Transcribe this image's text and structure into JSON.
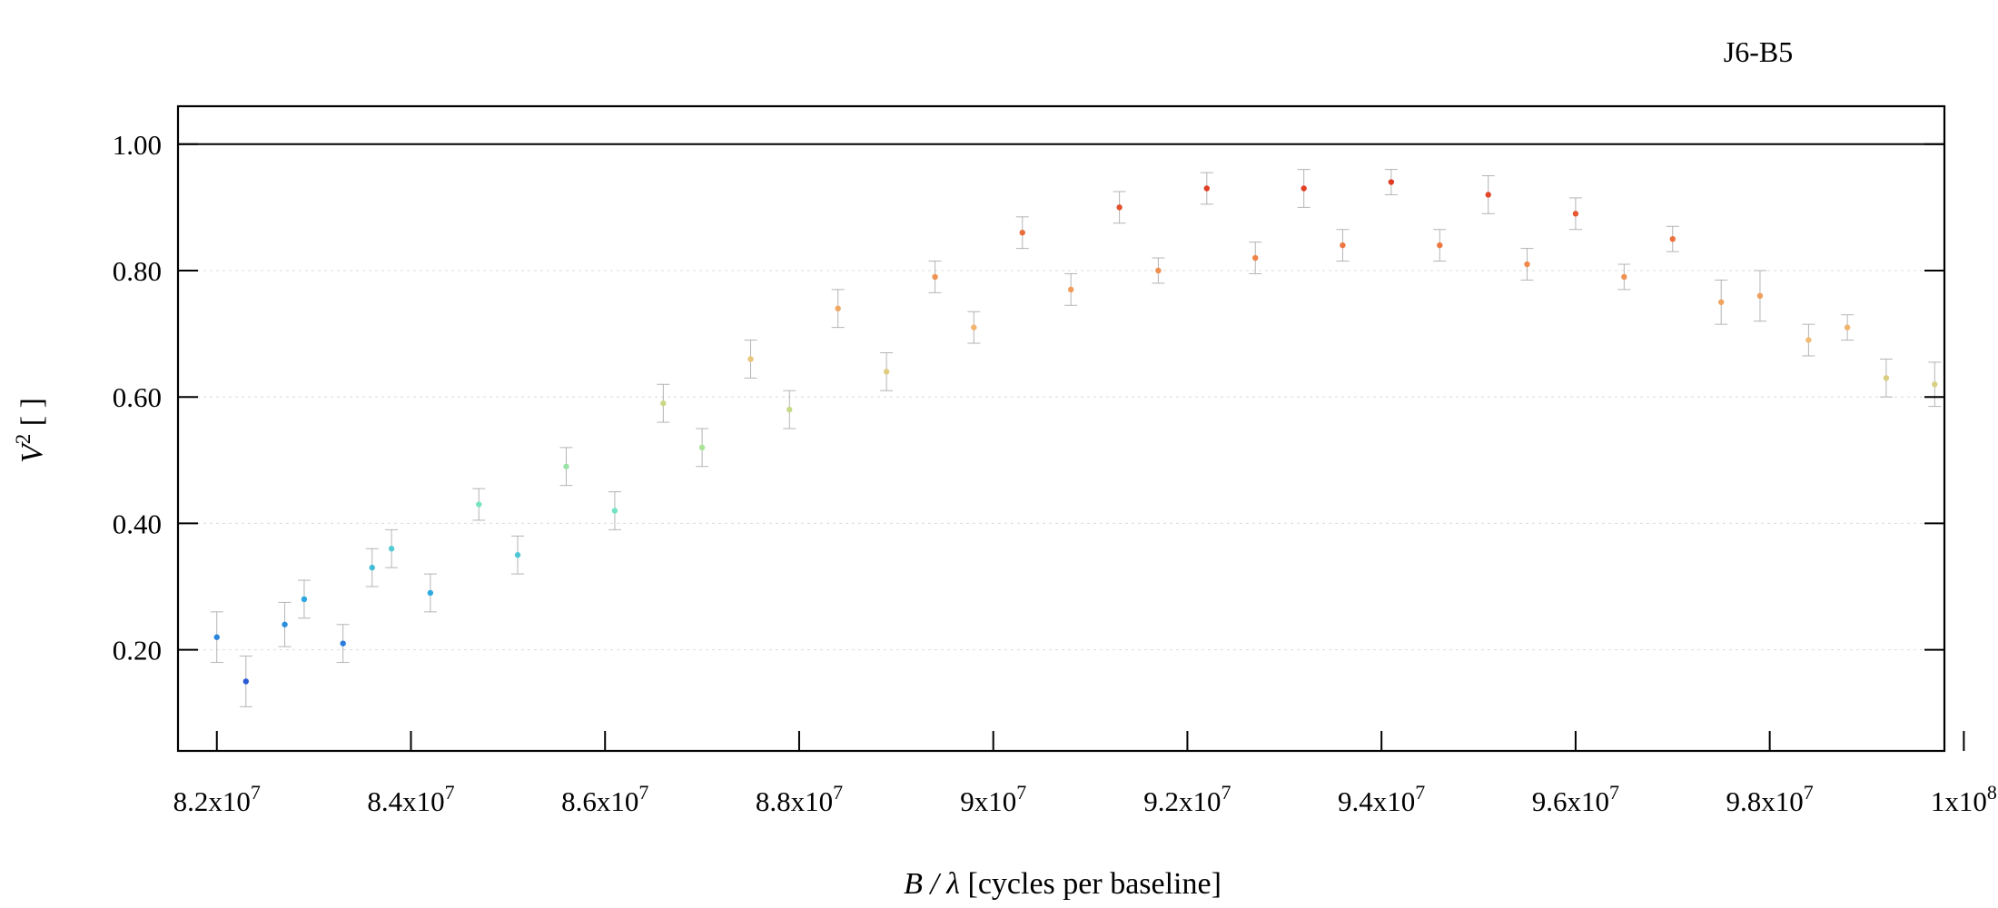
{
  "chart_data": {
    "type": "scatter",
    "subtitle": "J6-B5",
    "xlabel_italic": "B / λ",
    "xlabel_rest": " [cycles per baseline]",
    "ylabel_italic": "V",
    "ylabel_sup": "2",
    "ylabel_rest": " [ ]",
    "xlim": [
      81600000,
      99800000
    ],
    "ylim": [
      0.04,
      1.06
    ],
    "reference_line_y": 1.0,
    "x_ticks": [
      82000000,
      84000000,
      86000000,
      88000000,
      90000000,
      92000000,
      94000000,
      96000000,
      98000000,
      100000000
    ],
    "x_tick_labels": [
      {
        "base": "8.2x10",
        "exp": "7"
      },
      {
        "base": "8.4x10",
        "exp": "7"
      },
      {
        "base": "8.6x10",
        "exp": "7"
      },
      {
        "base": "8.8x10",
        "exp": "7"
      },
      {
        "base": "9x10",
        "exp": "7"
      },
      {
        "base": "9.2x10",
        "exp": "7"
      },
      {
        "base": "9.4x10",
        "exp": "7"
      },
      {
        "base": "9.6x10",
        "exp": "7"
      },
      {
        "base": "9.8x10",
        "exp": "7"
      },
      {
        "base": "1x10",
        "exp": "8"
      }
    ],
    "y_ticks": [
      0.2,
      0.4,
      0.6,
      0.8,
      1.0
    ],
    "y_tick_labels": [
      "0.20",
      "0.40",
      "0.60",
      "0.80",
      "1.00"
    ],
    "grid": "horizontal dotted",
    "error_bar_color": "#a8a8a8",
    "colormap": [
      "#2b5cd6",
      "#2aa7e0",
      "#6fe3c8",
      "#b5e38c",
      "#f2c27a",
      "#f08a4b",
      "#e03a22"
    ],
    "series": [
      {
        "x": [
          82000000,
          82300000,
          82700000,
          82900000,
          83300000,
          83600000,
          83800000,
          84200000,
          84700000,
          85100000,
          85600000,
          86100000,
          86600000,
          87000000,
          87500000,
          87900000,
          88400000,
          88900000,
          89400000,
          89800000,
          90300000,
          90800000,
          91300000,
          91700000,
          92200000,
          92700000,
          93200000,
          93600000,
          94100000,
          94600000,
          95100000,
          95500000,
          96000000,
          96500000,
          97000000,
          97500000,
          97900000,
          98400000,
          98800000,
          99200000,
          99700000
        ],
        "y": [
          0.22,
          0.15,
          0.24,
          0.28,
          0.21,
          0.33,
          0.36,
          0.29,
          0.43,
          0.35,
          0.49,
          0.42,
          0.59,
          0.52,
          0.66,
          0.58,
          0.74,
          0.64,
          0.79,
          0.71,
          0.86,
          0.77,
          0.9,
          0.8,
          0.93,
          0.82,
          0.93,
          0.84,
          0.94,
          0.84,
          0.92,
          0.81,
          0.89,
          0.79,
          0.85,
          0.75,
          0.76,
          0.69,
          0.71,
          0.63,
          0.62
        ],
        "y_err": [
          0.04,
          0.04,
          0.035,
          0.03,
          0.03,
          0.03,
          0.03,
          0.03,
          0.025,
          0.03,
          0.03,
          0.03,
          0.03,
          0.03,
          0.03,
          0.03,
          0.03,
          0.03,
          0.025,
          0.025,
          0.025,
          0.025,
          0.025,
          0.02,
          0.025,
          0.025,
          0.03,
          0.025,
          0.02,
          0.025,
          0.03,
          0.025,
          0.025,
          0.02,
          0.02,
          0.035,
          0.04,
          0.025,
          0.02,
          0.03,
          0.035
        ]
      }
    ]
  }
}
